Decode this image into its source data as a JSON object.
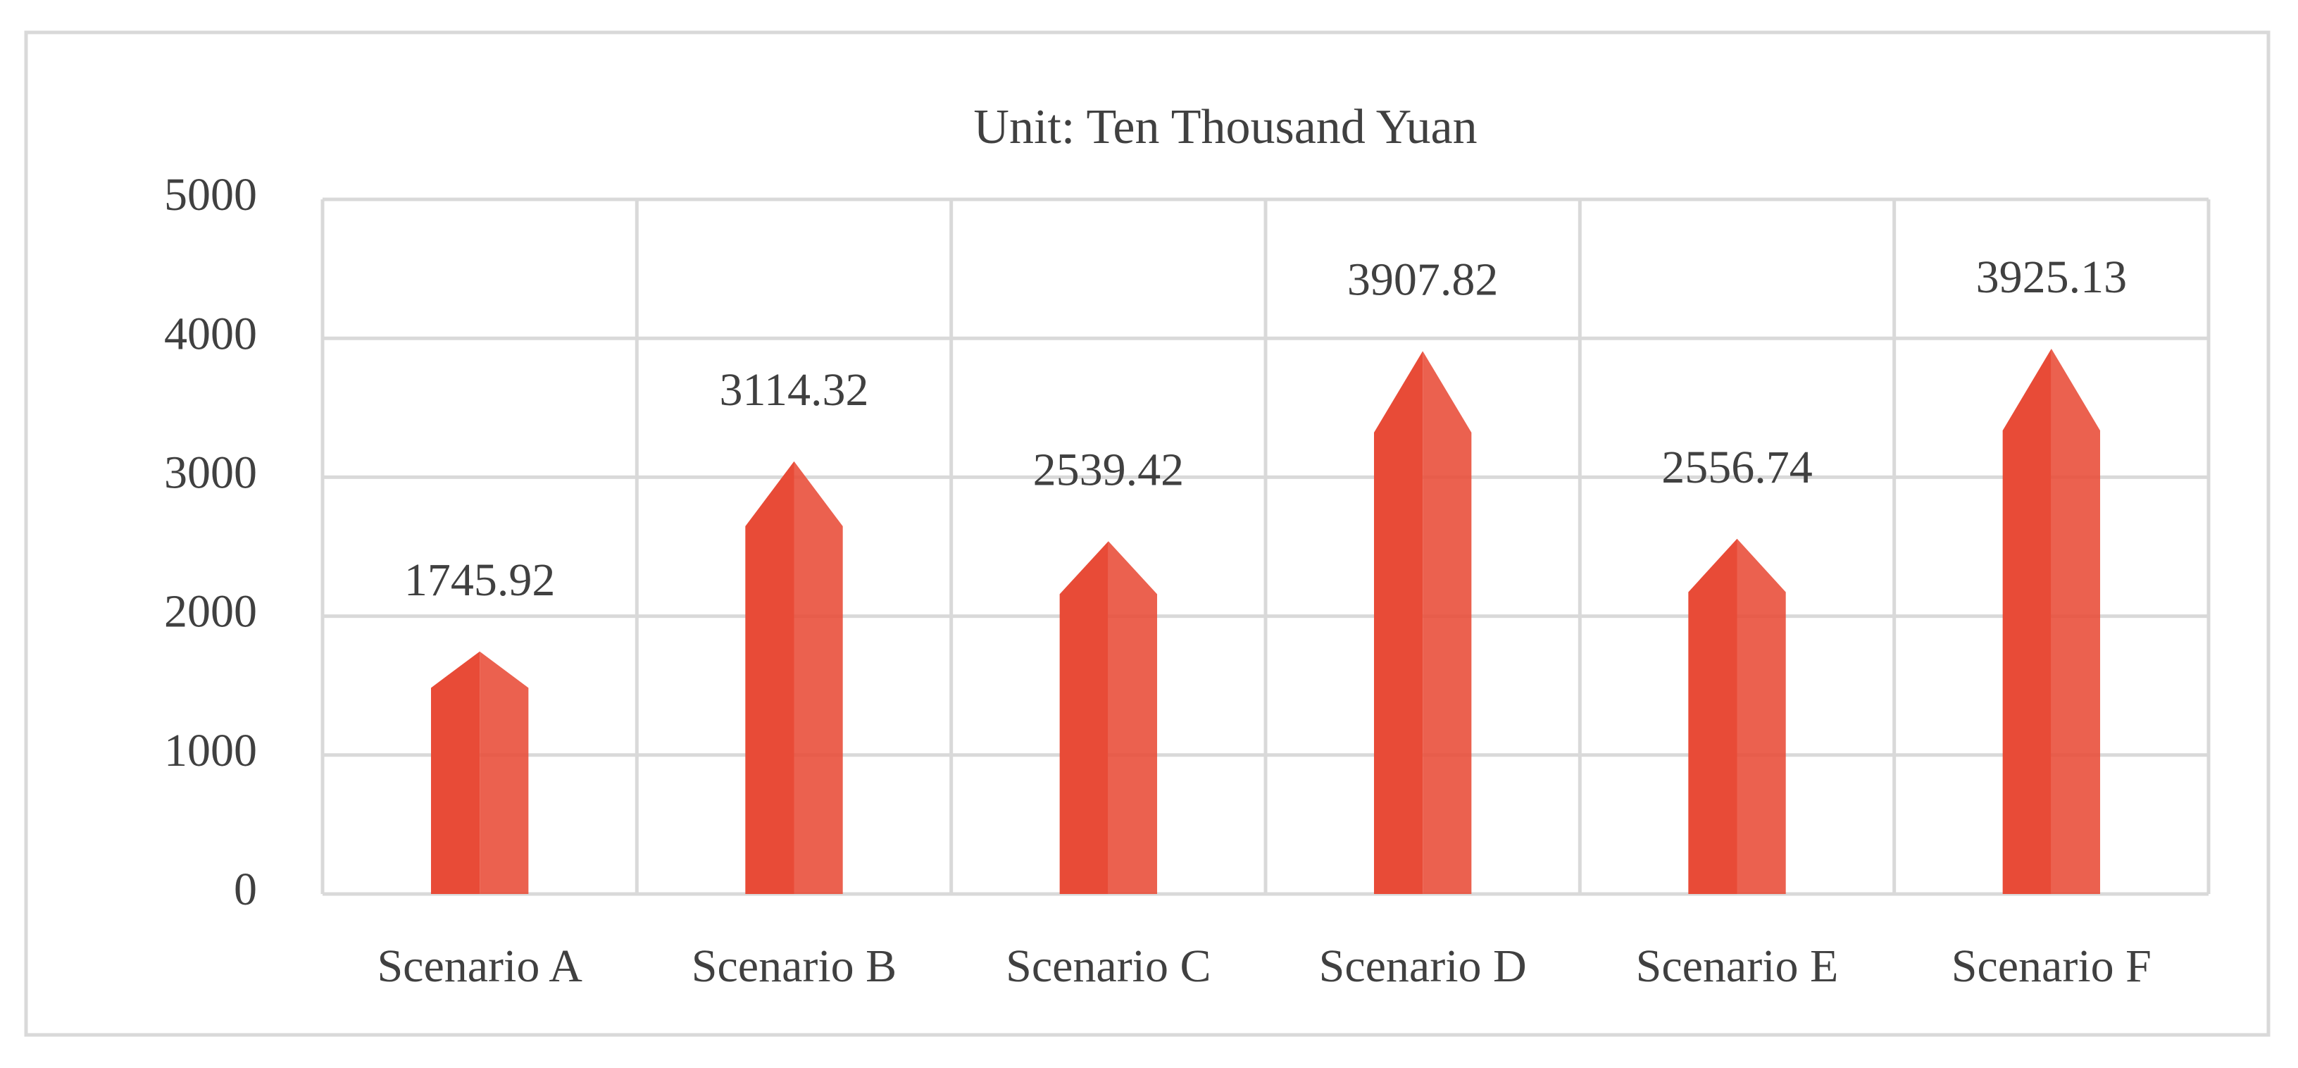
{
  "chart_data": {
    "type": "bar",
    "title": "Unit: Ten Thousand Yuan",
    "categories": [
      "Scenario A",
      "Scenario B",
      "Scenario C",
      "Scenario D",
      "Scenario E",
      "Scenario F"
    ],
    "values": [
      1745.92,
      3114.32,
      2539.42,
      3907.82,
      2556.74,
      3925.13
    ],
    "color": "#e84b37",
    "ylim": [
      0,
      5000
    ],
    "yticks": [
      0,
      1000,
      2000,
      3000,
      4000,
      5000
    ],
    "grid": true
  }
}
